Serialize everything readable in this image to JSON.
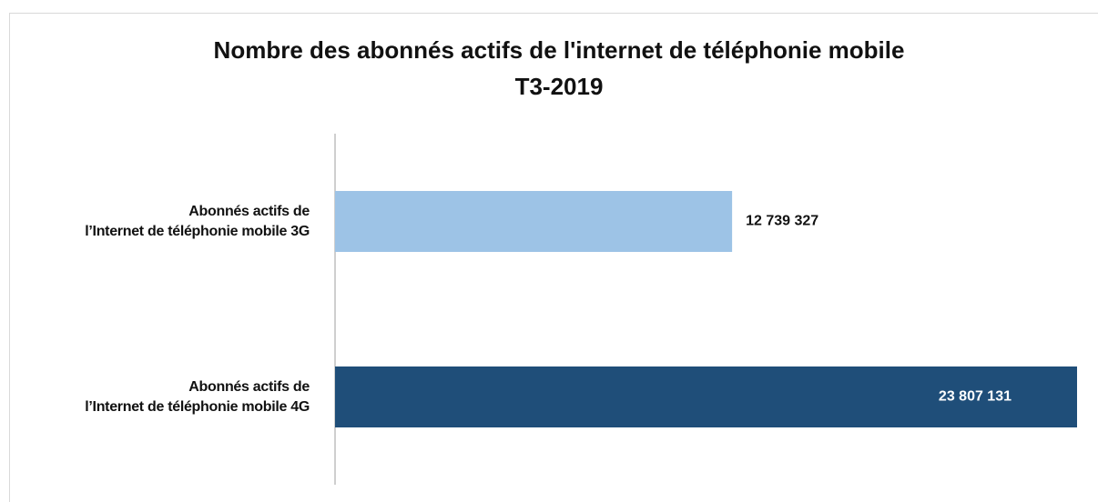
{
  "chart_data": {
    "type": "bar",
    "orientation": "horizontal",
    "title": "Nombre des abonnés actifs de l'internet de téléphonie mobile",
    "subtitle": "T3-2019",
    "categories": [
      "Abonnés actifs de\nl’Internet de téléphonie mobile 3G",
      "Abonnés actifs de\nl’Internet de téléphonie mobile 4G"
    ],
    "values": [
      12739327,
      23807131
    ],
    "value_labels": [
      "12 739 327",
      "23 807 131"
    ],
    "colors": [
      "#9dc3e6",
      "#1f4e79"
    ]
  }
}
